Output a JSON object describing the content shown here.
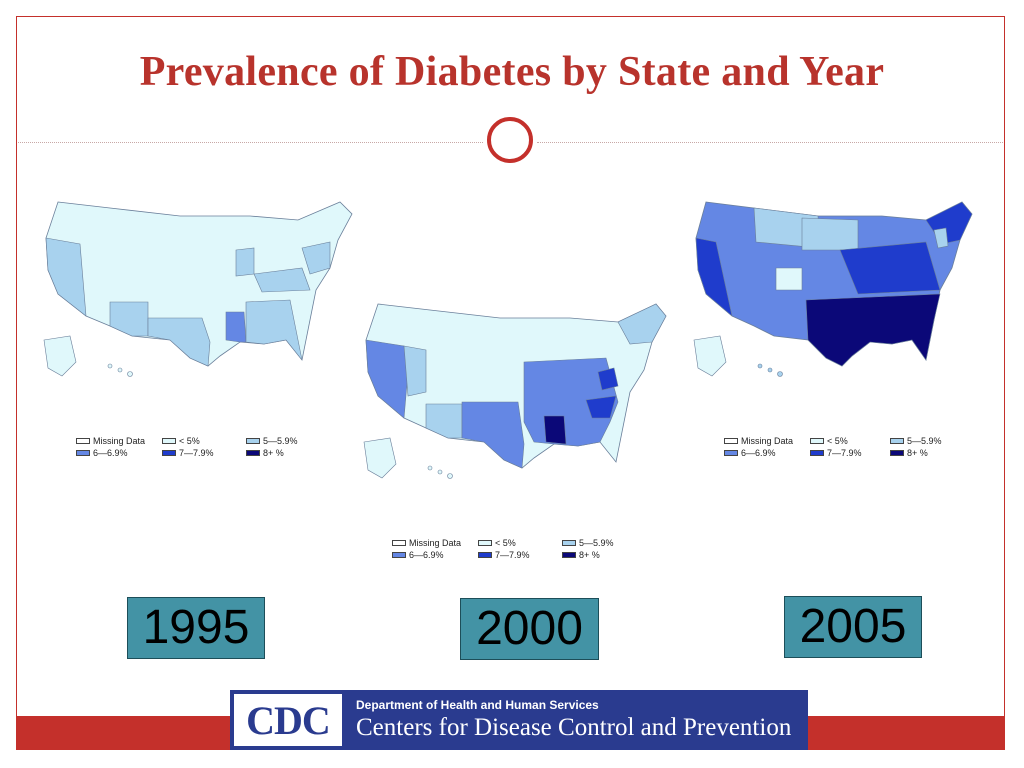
{
  "slide": {
    "title": "Prevalence of Diabetes by State and Year"
  },
  "colors": {
    "accent": "#c4302b",
    "missing": "#ffffff",
    "lt5": "#e0f8fb",
    "p5": "#a8d2ee",
    "p6": "#6487e4",
    "p7": "#1f3ccc",
    "p8": "#0b0878",
    "year_box": "#4393a5",
    "cdc_blue": "#2a3b8f"
  },
  "legend": {
    "items": [
      {
        "label": "Missing Data",
        "color_key": "missing"
      },
      {
        "label": "< 5%",
        "color_key": "lt5"
      },
      {
        "label": "5—5.9%",
        "color_key": "p5"
      },
      {
        "label": "6—6.9%",
        "color_key": "p6"
      },
      {
        "label": "7—7.9%",
        "color_key": "p7"
      },
      {
        "label": "8+ %",
        "color_key": "p8"
      }
    ]
  },
  "maps": [
    {
      "year": "1995"
    },
    {
      "year": "2000"
    },
    {
      "year": "2005"
    }
  ],
  "footer": {
    "logo_text": "CDC",
    "department": "Department of Health and Human Services",
    "agency": "Centers for Disease Control and Prevention"
  }
}
